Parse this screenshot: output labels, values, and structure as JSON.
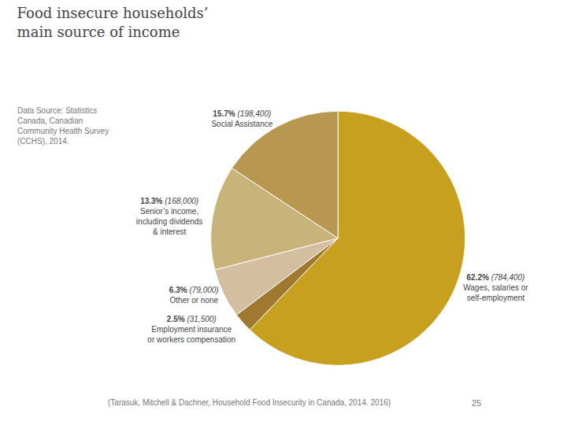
{
  "chart_data": {
    "type": "pie",
    "title": "Food insecure households’\nmain source of income",
    "categories": [
      "Wages, salaries or\nself-employment",
      "Employment insurance\nor workers compensation",
      "Other or none",
      "Senior’s income,\nincluding dividends\n& interest",
      "Social Assistance"
    ],
    "values": [
      62.2,
      2.5,
      6.3,
      13.3,
      15.7
    ],
    "value_labels": [
      "62.2%",
      "2.5%",
      "6.3%",
      "13.3%",
      "15.7%"
    ],
    "counts": [
      784400,
      31500,
      79000,
      168000,
      198400
    ],
    "count_labels": [
      "(784,400)",
      "(31,500)",
      "(79,000)",
      "(168,000)",
      "(198,400)"
    ],
    "colors": [
      "#c8a020",
      "#a07830",
      "#d4bea0",
      "#c8b478",
      "#b89850"
    ],
    "data_labels": true,
    "annotations": [
      "Data Source: Statistics\nCanada, Canadian\nCommunity Health Survey\n(CCHS), 2014.",
      "25",
      "(Tarasuk, Mitchell & Dachner, Household Food Insecurity in Canada, 2014. 2016)"
    ]
  }
}
